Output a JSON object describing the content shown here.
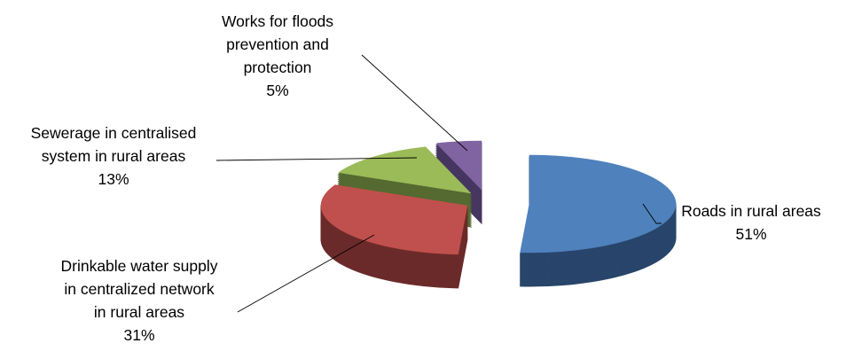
{
  "chart_data": {
    "type": "pie",
    "style": "3d-exploded",
    "title": "",
    "legend": "none",
    "slices": [
      {
        "label_lines": [
          "Roads in rural areas"
        ],
        "percent_label": "51%",
        "value": 51,
        "color": "#4F81BD",
        "side_color": "#28456A"
      },
      {
        "label_lines": [
          "Drinkable water supply",
          "in centralized network",
          "in rural areas"
        ],
        "percent_label": "31%",
        "value": 31,
        "color": "#C0504D",
        "side_color": "#6B2B2A"
      },
      {
        "label_lines": [
          "Sewerage in centralised",
          "system in rural areas"
        ],
        "percent_label": "13%",
        "value": 13,
        "color": "#9BBB59",
        "side_color": "#546A30"
      },
      {
        "label_lines": [
          "Works for floods",
          "prevention and",
          "protection"
        ],
        "percent_label": "5%",
        "value": 5,
        "color": "#8064A2",
        "side_color": "#463660"
      }
    ]
  }
}
